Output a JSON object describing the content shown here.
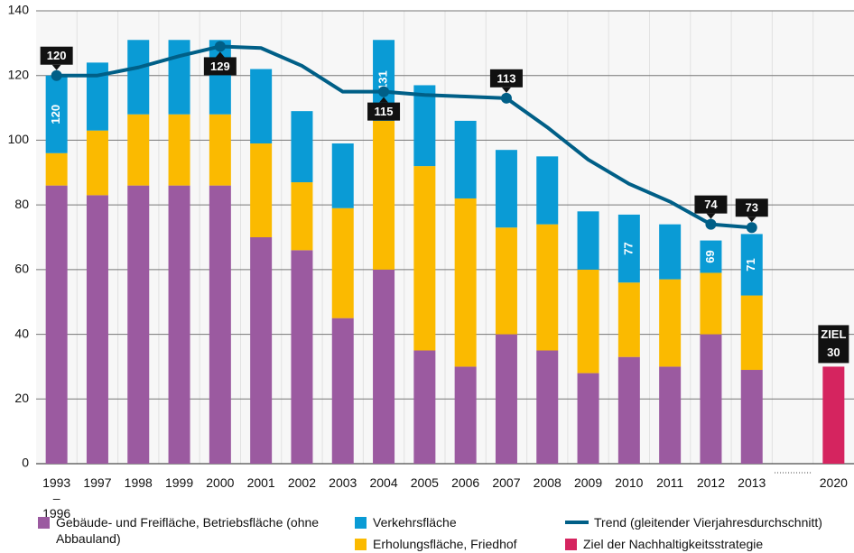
{
  "chart_data": {
    "type": "bar",
    "stacked": true,
    "categories": [
      "1993 – 1996",
      "1997",
      "1998",
      "1999",
      "2000",
      "2001",
      "2002",
      "2003",
      "2004",
      "2005",
      "2006",
      "2007",
      "2008",
      "2009",
      "2010",
      "2011",
      "2012",
      "2013",
      null,
      "2020"
    ],
    "series": [
      {
        "name": "Gebäude- und Freifläche, Betriebsfläche (ohne Abbauland)",
        "color": "#9b5aa0",
        "kind": "bar",
        "values": [
          86,
          83,
          86,
          86,
          86,
          70,
          66,
          45,
          60,
          35,
          30,
          40,
          35,
          28,
          33,
          30,
          40,
          29,
          null,
          null
        ]
      },
      {
        "name": "Erholungsfläche, Friedhof",
        "color": "#fbba00",
        "kind": "bar",
        "values": [
          10,
          20,
          22,
          22,
          22,
          29,
          21,
          34,
          46,
          57,
          52,
          33,
          39,
          32,
          23,
          27,
          19,
          23,
          null,
          null
        ]
      },
      {
        "name": "Verkehrsfläche",
        "color": "#0a9bd5",
        "kind": "bar",
        "values": [
          24,
          21,
          23,
          23,
          23,
          23,
          22,
          20,
          25,
          25,
          24,
          24,
          21,
          18,
          21,
          17,
          10,
          19,
          null,
          null
        ]
      },
      {
        "name": "Trend (gleitender Vierjahresdurchschnitt)",
        "color": "#005f87",
        "kind": "line",
        "values": [
          120,
          120,
          122.5,
          126,
          129,
          128.5,
          123,
          115,
          115,
          114,
          113.5,
          113,
          104,
          94,
          86.5,
          81,
          74,
          73,
          null,
          null
        ],
        "value_labels": [
          120,
          null,
          null,
          null,
          129,
          null,
          null,
          null,
          115,
          null,
          null,
          113,
          null,
          null,
          null,
          null,
          74,
          73,
          null,
          null
        ]
      },
      {
        "name": "Ziel der Nachhaltigkeitsstrategie",
        "color": "#d5245f",
        "kind": "target",
        "values": [
          null,
          null,
          null,
          null,
          null,
          null,
          null,
          null,
          null,
          null,
          null,
          null,
          null,
          null,
          null,
          null,
          null,
          null,
          null,
          30
        ],
        "annotation": "ZIEL"
      }
    ],
    "total_labels": [
      120,
      null,
      null,
      null,
      null,
      null,
      null,
      null,
      131,
      null,
      null,
      null,
      null,
      null,
      77,
      null,
      69,
      71,
      null,
      null
    ],
    "ylim": [
      0,
      140
    ],
    "yticks": [
      0,
      20,
      40,
      60,
      80,
      100,
      120,
      140
    ],
    "grid": true
  }
}
